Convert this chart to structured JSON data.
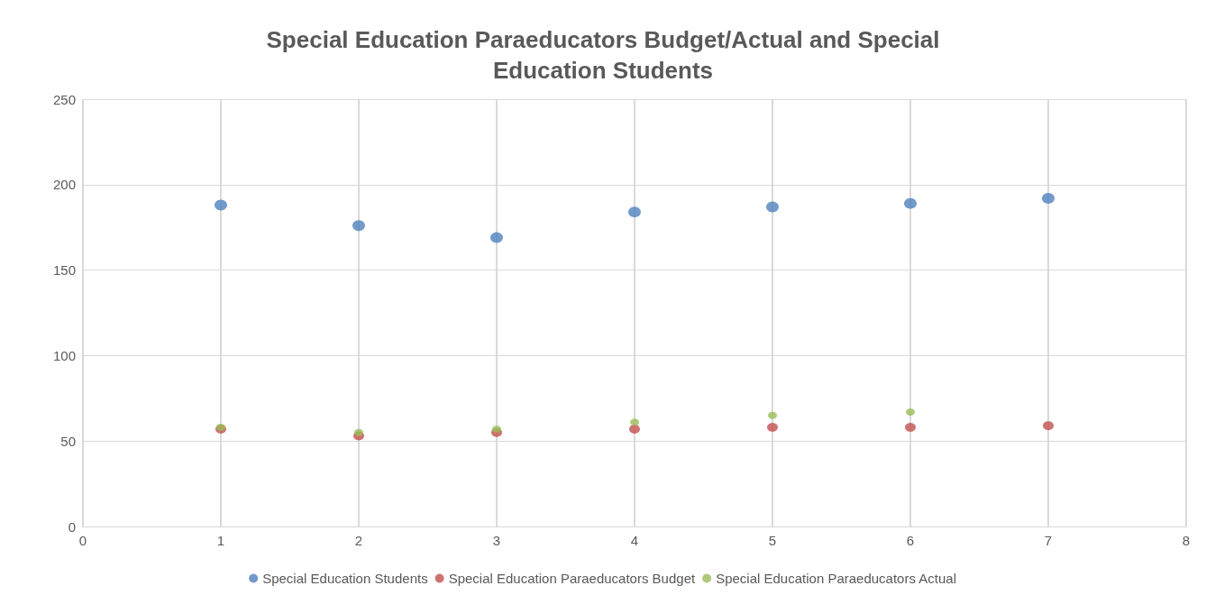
{
  "chart_data": {
    "type": "scatter",
    "title": "Special Education Paraeducators Budget/Actual and Special\nEducation Students",
    "xlim": [
      0,
      8
    ],
    "xticks": [
      0,
      1,
      2,
      3,
      4,
      5,
      6,
      7,
      8
    ],
    "ylim": [
      0,
      250
    ],
    "yticks": [
      0,
      50,
      100,
      150,
      200,
      250
    ],
    "grid": true,
    "legend": "bottom",
    "marker": "circle",
    "series": [
      {
        "name": "Special Education Students",
        "color": "#4f81bd",
        "x": [
          1,
          2,
          3,
          4,
          5,
          6,
          7
        ],
        "values": [
          188,
          176,
          169,
          184,
          187,
          189,
          192
        ]
      },
      {
        "name": "Special Education Paraeducators Budget",
        "color": "#c0504d",
        "x": [
          1,
          2,
          3,
          4,
          5,
          6,
          7
        ],
        "values": [
          57,
          53,
          55,
          57,
          58,
          58,
          59
        ]
      },
      {
        "name": "Special Education Paraeducators Actual",
        "color": "#9bbb59",
        "x": [
          1,
          2,
          3,
          4,
          5,
          6
        ],
        "values": [
          58,
          55,
          57,
          61,
          65,
          67
        ]
      }
    ]
  }
}
